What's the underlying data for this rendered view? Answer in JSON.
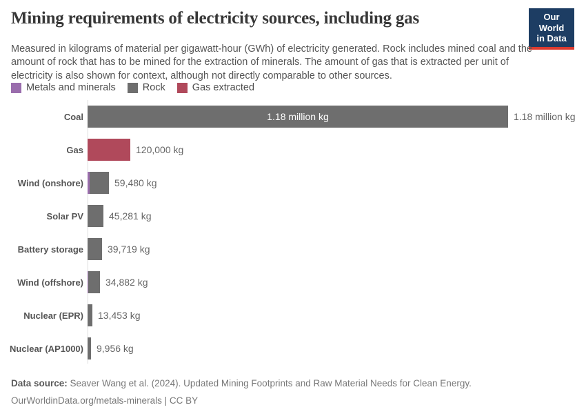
{
  "header": {
    "title": "Mining requirements of electricity sources, including gas",
    "subtitle": "Measured in kilograms of material per gigawatt-hour (GWh) of electricity generated. Rock includes mined coal and the amount of rock that has to be mined for the extraction of minerals. The amount of gas that is extracted per unit of electricity is also shown for context, although not directly comparable to other sources.",
    "logo": {
      "line1": "Our World",
      "line2": "in Data",
      "bg_color": "#1d3d63",
      "stripe_color": "#dc3a2f"
    }
  },
  "legend": {
    "items": [
      {
        "label": "Metals and minerals",
        "color": "#9a6dad"
      },
      {
        "label": "Rock",
        "color": "#6e6e6e"
      },
      {
        "label": "Gas extracted",
        "color": "#b0495b"
      }
    ]
  },
  "chart_data": {
    "type": "bar",
    "orientation": "horizontal",
    "unit": "kg per GWh",
    "xlim": [
      0,
      1180000
    ],
    "grid": false,
    "series_colors": {
      "Metals and minerals": "#9a6dad",
      "Rock": "#6e6e6e",
      "Gas extracted": "#b0495b"
    },
    "categories": [
      "Coal",
      "Gas",
      "Wind (onshore)",
      "Solar PV",
      "Battery storage",
      "Wind (offshore)",
      "Nuclear (EPR)",
      "Nuclear (AP1000)"
    ],
    "rows": [
      {
        "category": "Coal",
        "total": 1180000,
        "label": "1.18 million kg",
        "inside_label": "1.18 million kg",
        "segments": [
          {
            "series": "Rock",
            "value": 1180000
          }
        ]
      },
      {
        "category": "Gas",
        "total": 120000,
        "label": "120,000 kg",
        "segments": [
          {
            "series": "Gas extracted",
            "value": 120000
          }
        ]
      },
      {
        "category": "Wind (onshore)",
        "total": 59480,
        "label": "59,480 kg",
        "segments": [
          {
            "series": "Metals and minerals",
            "value": 5800
          },
          {
            "series": "Rock",
            "value": 53680
          }
        ]
      },
      {
        "category": "Solar PV",
        "total": 45281,
        "label": "45,281 kg",
        "segments": [
          {
            "series": "Rock",
            "value": 45281
          }
        ]
      },
      {
        "category": "Battery storage",
        "total": 39719,
        "label": "39,719 kg",
        "segments": [
          {
            "series": "Rock",
            "value": 39719
          }
        ]
      },
      {
        "category": "Wind (offshore)",
        "total": 34882,
        "label": "34,882 kg",
        "segments": [
          {
            "series": "Metals and minerals",
            "value": 1900
          },
          {
            "series": "Rock",
            "value": 32982
          }
        ]
      },
      {
        "category": "Nuclear (EPR)",
        "total": 13453,
        "label": "13,453 kg",
        "segments": [
          {
            "series": "Rock",
            "value": 13453
          }
        ]
      },
      {
        "category": "Nuclear (AP1000)",
        "total": 9956,
        "label": "9,956 kg",
        "segments": [
          {
            "series": "Rock",
            "value": 9956
          }
        ]
      }
    ]
  },
  "footer": {
    "source_label": "Data source:",
    "source_text": " Seaver Wang et al. (2024). Updated Mining Footprints and Raw Material Needs for Clean Energy.",
    "line2": "OurWorldinData.org/metals-minerals | CC BY"
  }
}
